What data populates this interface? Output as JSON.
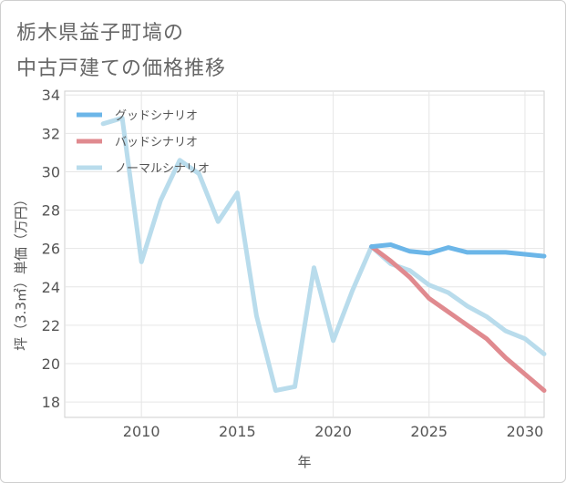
{
  "title_line1": "栃木県益子町塙の",
  "title_line2": "中古戸建ての価格推移",
  "chart_data": {
    "type": "line",
    "title": "栃木県益子町塙の中古戸建ての価格推移",
    "xlabel": "年",
    "ylabel": "坪（3.3㎡）単価（万円）",
    "xlim": [
      2006,
      2031
    ],
    "ylim": [
      17.2,
      34.2
    ],
    "xticks": [
      2010,
      2015,
      2020,
      2025,
      2030
    ],
    "yticks": [
      18,
      20,
      22,
      24,
      26,
      28,
      30,
      32,
      34
    ],
    "legend_position": "top-left",
    "grid": true,
    "series": [
      {
        "name": "グッドシナリオ",
        "color": "#6cb6e8",
        "x": [
          2022,
          2023,
          2024,
          2025,
          2026,
          2027,
          2028,
          2029,
          2030,
          2031
        ],
        "values": [
          26.1,
          26.2,
          25.85,
          25.75,
          26.05,
          25.8,
          25.8,
          25.8,
          25.7,
          25.6
        ]
      },
      {
        "name": "バッドシナリオ",
        "color": "#e08a8f",
        "x": [
          2022,
          2023,
          2024,
          2025,
          2026,
          2027,
          2028,
          2029,
          2030,
          2031
        ],
        "values": [
          26.1,
          25.35,
          24.5,
          23.4,
          22.7,
          22.0,
          21.3,
          20.3,
          19.45,
          18.6
        ]
      },
      {
        "name": "ノーマルシナリオ",
        "color": "#b9dcec",
        "x": [
          2008,
          2009,
          2010,
          2011,
          2012,
          2013,
          2014,
          2015,
          2016,
          2017,
          2018,
          2019,
          2020,
          2021,
          2022,
          2023,
          2024,
          2025,
          2026,
          2027,
          2028,
          2029,
          2030,
          2031
        ],
        "values": [
          32.5,
          32.8,
          25.3,
          28.5,
          30.6,
          29.9,
          27.4,
          28.9,
          22.5,
          18.6,
          18.8,
          25.0,
          21.2,
          23.8,
          26.1,
          25.2,
          24.85,
          24.1,
          23.7,
          23.0,
          22.45,
          21.7,
          21.3,
          20.5
        ]
      }
    ]
  }
}
